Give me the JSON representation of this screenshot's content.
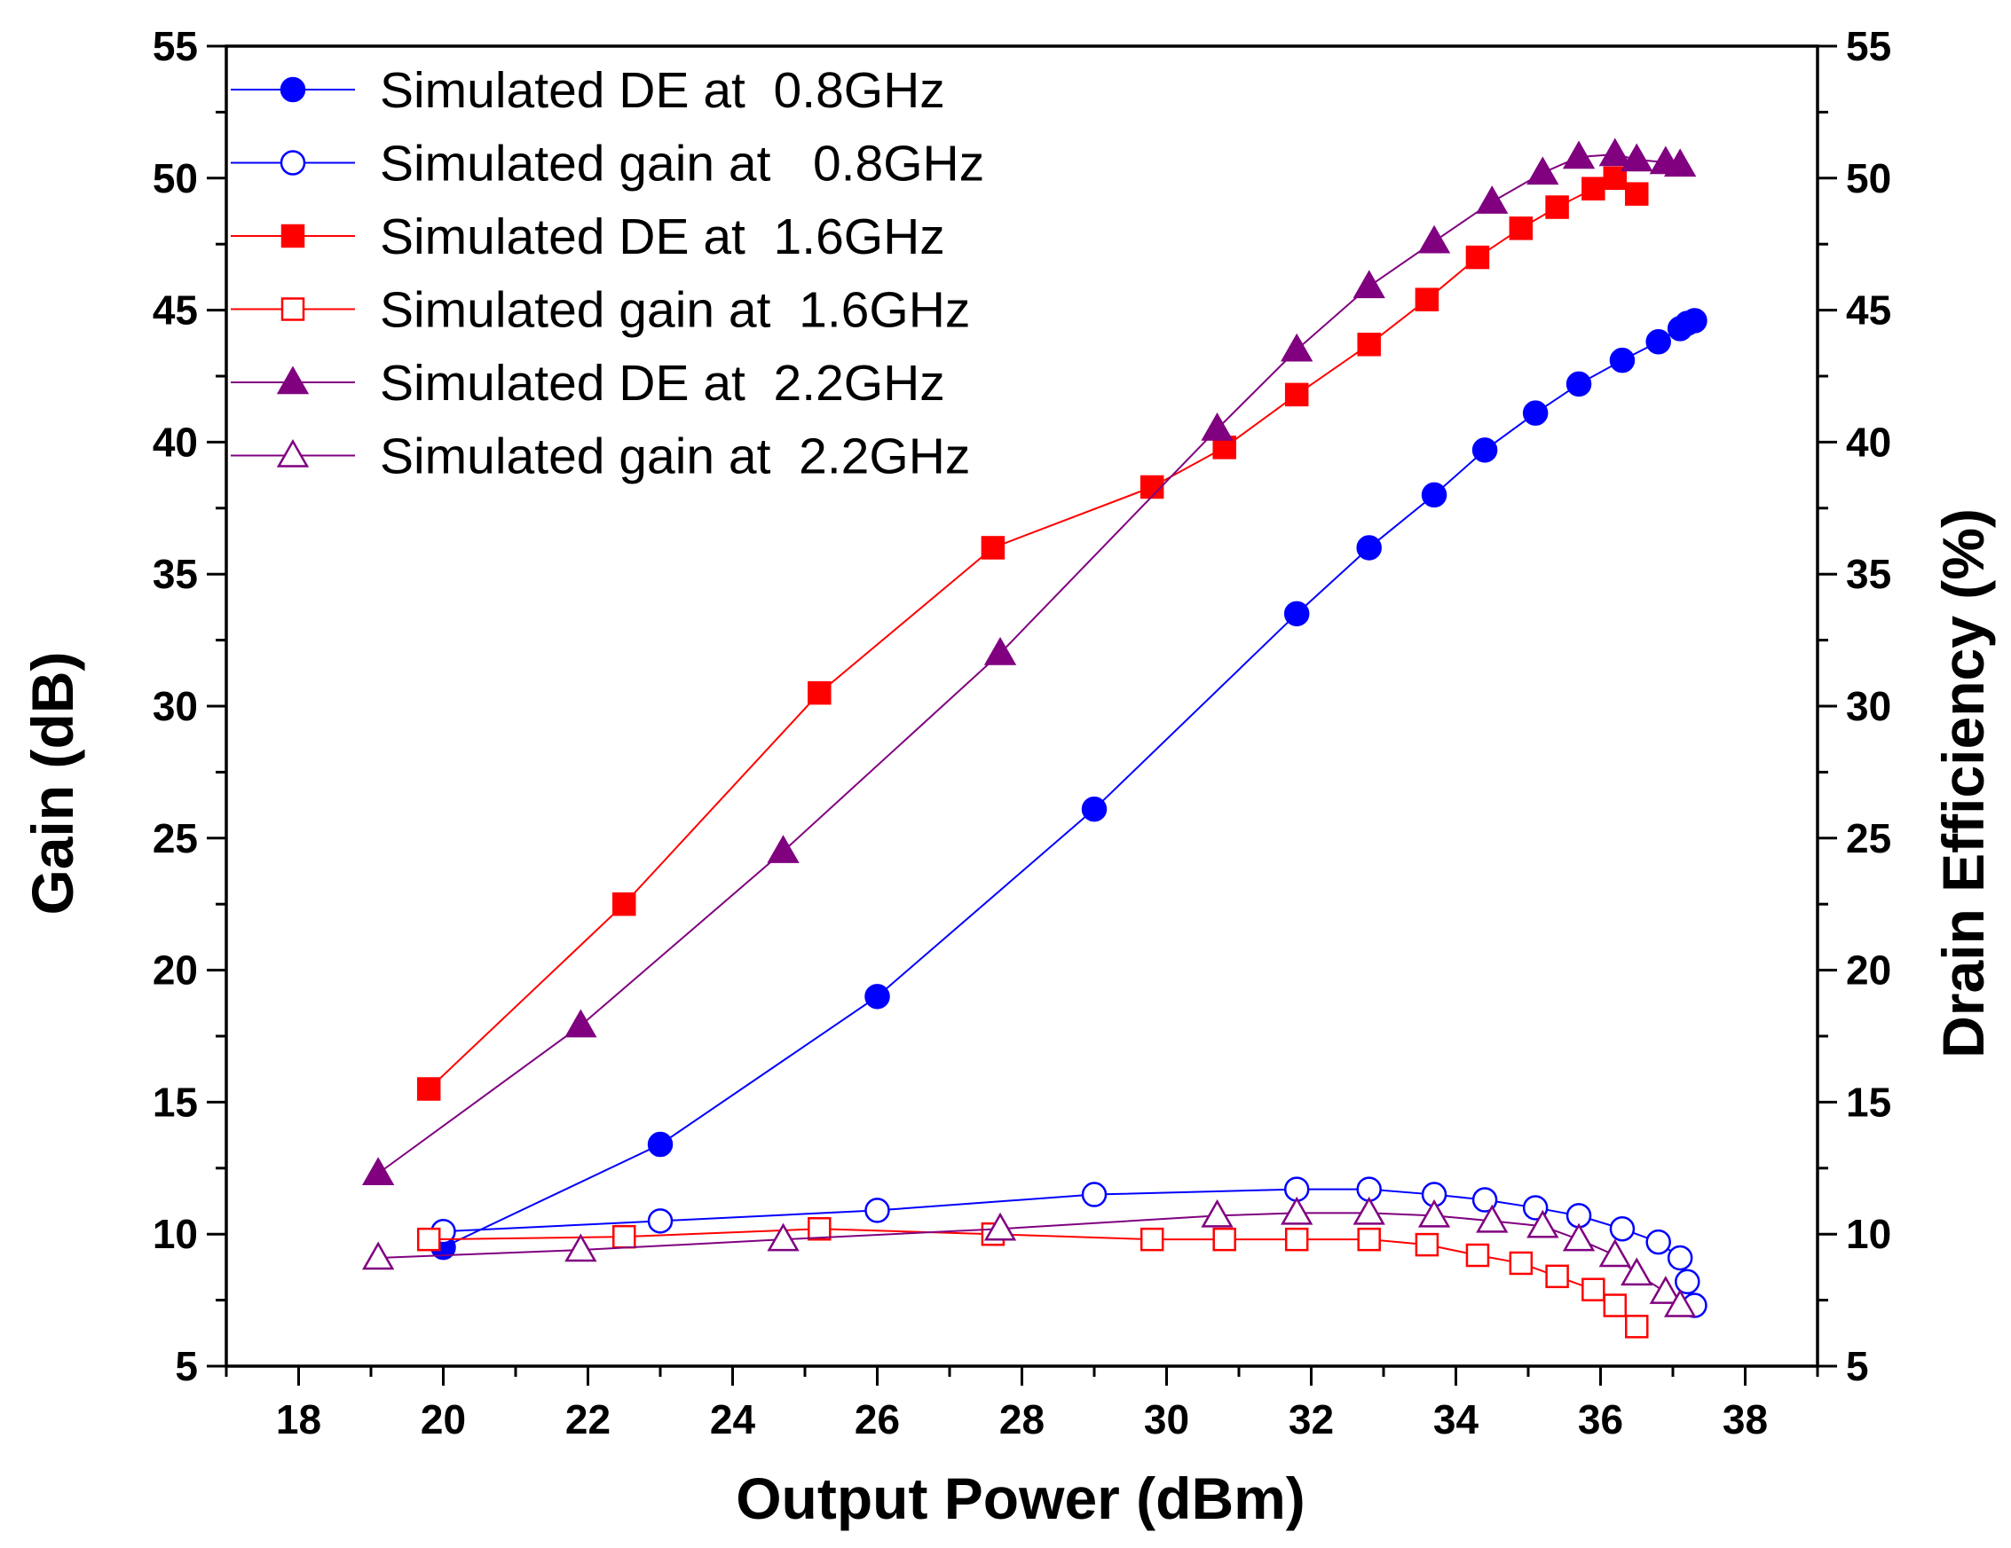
{
  "chart_data": {
    "type": "line",
    "title": "",
    "xlabel": "Output Power (dBm)",
    "ylabel": "Gain (dB)",
    "y2label": "Drain Efficiency (%)",
    "xlim": [
      17,
      39
    ],
    "ylim": [
      5,
      55
    ],
    "y2lim": [
      5,
      55
    ],
    "xticks": [
      18,
      20,
      22,
      24,
      26,
      28,
      30,
      32,
      34,
      36,
      38
    ],
    "yticks": [
      5,
      10,
      15,
      20,
      25,
      30,
      35,
      40,
      45,
      50,
      55
    ],
    "grid": false,
    "legend_position": "top-left",
    "series": [
      {
        "name": "Simulated DE at  0.8GHz",
        "color": "#0000ff",
        "marker": "circle",
        "filled": true,
        "axis": "right",
        "x": [
          20.0,
          23.0,
          26.0,
          29.0,
          31.8,
          32.8,
          33.7,
          34.4,
          35.1,
          35.7,
          36.3,
          36.8,
          37.1,
          37.2,
          37.3
        ],
        "y": [
          9.5,
          13.4,
          19.0,
          26.1,
          33.5,
          36.0,
          38.0,
          39.7,
          41.1,
          42.2,
          43.1,
          43.8,
          44.3,
          44.5,
          44.6
        ]
      },
      {
        "name": "Simulated gain at   0.8GHz",
        "color": "#0000ff",
        "marker": "circle",
        "filled": false,
        "axis": "left",
        "x": [
          20.0,
          23.0,
          26.0,
          29.0,
          31.8,
          32.8,
          33.7,
          34.4,
          35.1,
          35.7,
          36.3,
          36.8,
          37.1,
          37.2,
          37.3
        ],
        "y": [
          10.1,
          10.5,
          10.9,
          11.5,
          11.7,
          11.7,
          11.5,
          11.3,
          11.0,
          10.7,
          10.2,
          9.7,
          9.1,
          8.2,
          7.3
        ]
      },
      {
        "name": "Simulated DE at  1.6GHz",
        "color": "#ff0000",
        "marker": "square",
        "filled": true,
        "axis": "right",
        "x": [
          19.8,
          22.5,
          25.2,
          27.6,
          29.8,
          30.8,
          31.8,
          32.8,
          33.6,
          34.3,
          34.9,
          35.4,
          35.9,
          36.2,
          36.5
        ],
        "y": [
          15.5,
          22.5,
          30.5,
          36.0,
          38.3,
          39.8,
          41.8,
          43.7,
          45.4,
          47.0,
          48.1,
          48.9,
          49.6,
          50.0,
          49.4
        ]
      },
      {
        "name": "Simulated gain at  1.6GHz",
        "color": "#ff0000",
        "marker": "square",
        "filled": false,
        "axis": "left",
        "x": [
          19.8,
          22.5,
          25.2,
          27.6,
          29.8,
          30.8,
          31.8,
          32.8,
          33.6,
          34.3,
          34.9,
          35.4,
          35.9,
          36.2,
          36.5
        ],
        "y": [
          9.8,
          9.9,
          10.2,
          10.0,
          9.8,
          9.8,
          9.8,
          9.8,
          9.6,
          9.2,
          8.9,
          8.4,
          7.9,
          7.3,
          6.5
        ]
      },
      {
        "name": "Simulated DE at  2.2GHz",
        "color": "#800080",
        "marker": "triangle",
        "filled": true,
        "axis": "right",
        "x": [
          19.1,
          21.9,
          24.7,
          27.7,
          30.7,
          31.8,
          32.8,
          33.7,
          34.5,
          35.2,
          35.7,
          36.2,
          36.5,
          36.9,
          37.1
        ],
        "y": [
          12.3,
          17.9,
          24.5,
          32.0,
          40.5,
          43.5,
          45.9,
          47.6,
          49.1,
          50.2,
          50.8,
          50.9,
          50.7,
          50.6,
          50.5
        ]
      },
      {
        "name": "Simulated gain at  2.2GHz",
        "color": "#800080",
        "marker": "triangle",
        "filled": false,
        "axis": "left",
        "x": [
          19.1,
          21.9,
          24.7,
          27.7,
          30.7,
          31.8,
          32.8,
          33.7,
          34.5,
          35.2,
          35.7,
          36.2,
          36.5,
          36.9,
          37.1
        ],
        "y": [
          9.1,
          9.4,
          9.8,
          10.2,
          10.7,
          10.8,
          10.8,
          10.7,
          10.5,
          10.3,
          9.8,
          9.2,
          8.5,
          7.8,
          7.3
        ]
      }
    ]
  }
}
